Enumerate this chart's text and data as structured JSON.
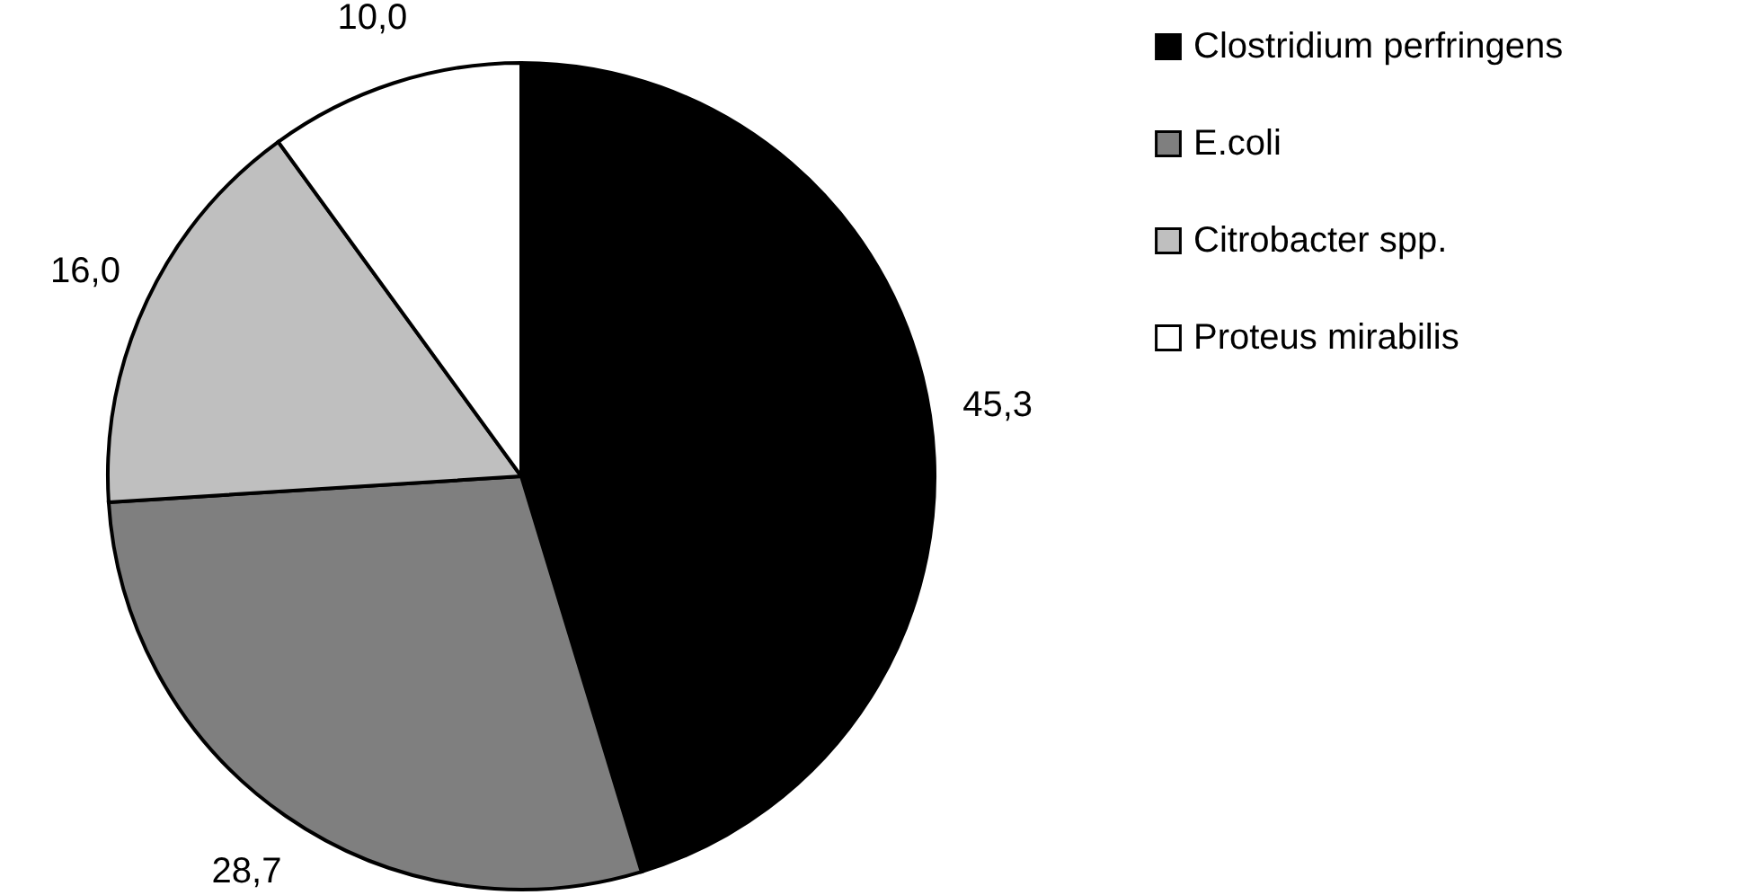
{
  "chart_data": {
    "type": "pie",
    "categories": [
      "Clostridium perfringens",
      "E.coli",
      "Citrobacter spp.",
      "Proteus mirabilis"
    ],
    "values": [
      45.3,
      28.7,
      16.0,
      10.0
    ],
    "value_labels": [
      "45,3",
      "28,7",
      "16,0",
      "10,0"
    ],
    "colors": [
      "#000000",
      "#7f7f7f",
      "#bfbfbf",
      "#ffffff"
    ],
    "legend": "right"
  }
}
